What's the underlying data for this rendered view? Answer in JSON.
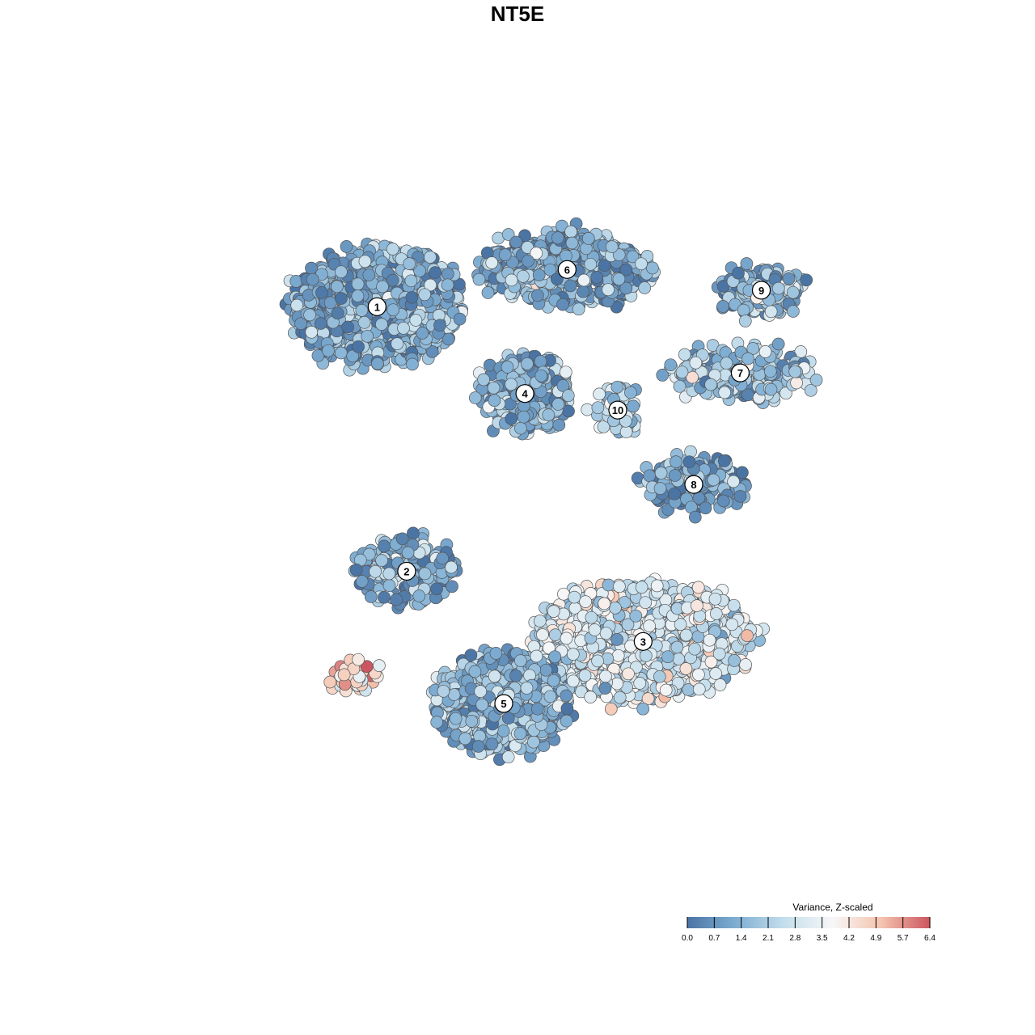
{
  "chart_data": {
    "type": "scatter",
    "title": "NT5E",
    "xlabel": "",
    "ylabel": "",
    "xlim": [
      -45,
      45
    ],
    "ylim": [
      -45,
      45
    ],
    "grid": false,
    "axes_visible": false,
    "color_scale": {
      "title": "Variance, Z-scaled",
      "min": 0.0,
      "max": 6.4,
      "ticks": [
        "0.0",
        "0.7",
        "1.4",
        "2.1",
        "2.8",
        "3.5",
        "4.2",
        "4.9",
        "5.7",
        "6.4"
      ],
      "palette": [
        "#4a74a4",
        "#7faed3",
        "#c4deec",
        "#f7f7f7",
        "#f4c4ae",
        "#cc5560"
      ],
      "legend_position": "bottom-right"
    },
    "clusters": [
      {
        "label": "1",
        "x": -19.5,
        "y": 25.5,
        "spread_x": 10,
        "spread_y": 7,
        "mean_value": 1.2,
        "n": 900
      },
      {
        "label": "6",
        "x": 3.0,
        "y": 30.0,
        "spread_x": 10,
        "spread_y": 4,
        "mean_value": 1.3,
        "n": 520
      },
      {
        "label": "9",
        "x": 26.0,
        "y": 27.5,
        "spread_x": 5,
        "spread_y": 2.5,
        "mean_value": 1.5,
        "n": 160
      },
      {
        "label": "4",
        "x": -2.0,
        "y": 15.0,
        "spread_x": 5,
        "spread_y": 4.5,
        "mean_value": 1.6,
        "n": 360
      },
      {
        "label": "10",
        "x": 9.0,
        "y": 13.0,
        "spread_x": 2.5,
        "spread_y": 3,
        "mean_value": 2.6,
        "n": 60
      },
      {
        "label": "7",
        "x": 23.5,
        "y": 17.5,
        "spread_x": 9,
        "spread_y": 3,
        "mean_value": 2.0,
        "n": 260
      },
      {
        "label": "8",
        "x": 18.0,
        "y": 4.0,
        "spread_x": 6,
        "spread_y": 3,
        "mean_value": 0.8,
        "n": 160
      },
      {
        "label": "2",
        "x": -16.0,
        "y": -6.5,
        "spread_x": 6,
        "spread_y": 4,
        "mean_value": 1.4,
        "n": 220
      },
      {
        "label": "3",
        "x": 12.0,
        "y": -15.0,
        "spread_x": 13,
        "spread_y": 7,
        "mean_value": 3.0,
        "n": 950
      },
      {
        "label": "5",
        "x": -4.5,
        "y": -22.5,
        "spread_x": 8,
        "spread_y": 6,
        "mean_value": 1.6,
        "n": 620
      },
      {
        "label": "",
        "x": -22.5,
        "y": -19.5,
        "spread_x": 3,
        "spread_y": 1.5,
        "mean_value": 4.4,
        "n": 45
      }
    ]
  }
}
